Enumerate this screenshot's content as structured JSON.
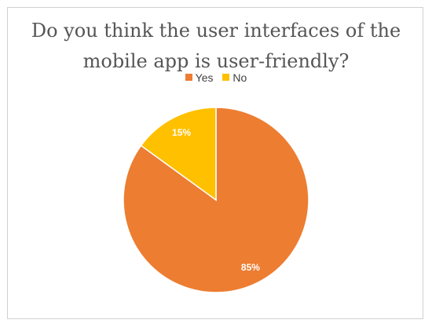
{
  "chart_data": {
    "type": "pie",
    "title": [
      "Do you think the user interfaces of the",
      "mobile app is user-friendly?"
    ],
    "categories": [
      "Yes",
      "No"
    ],
    "values": [
      85,
      15
    ],
    "labels": [
      "85%",
      "15%"
    ],
    "colors": [
      "#ED7D31",
      "#FFC000"
    ],
    "legend": "top"
  }
}
